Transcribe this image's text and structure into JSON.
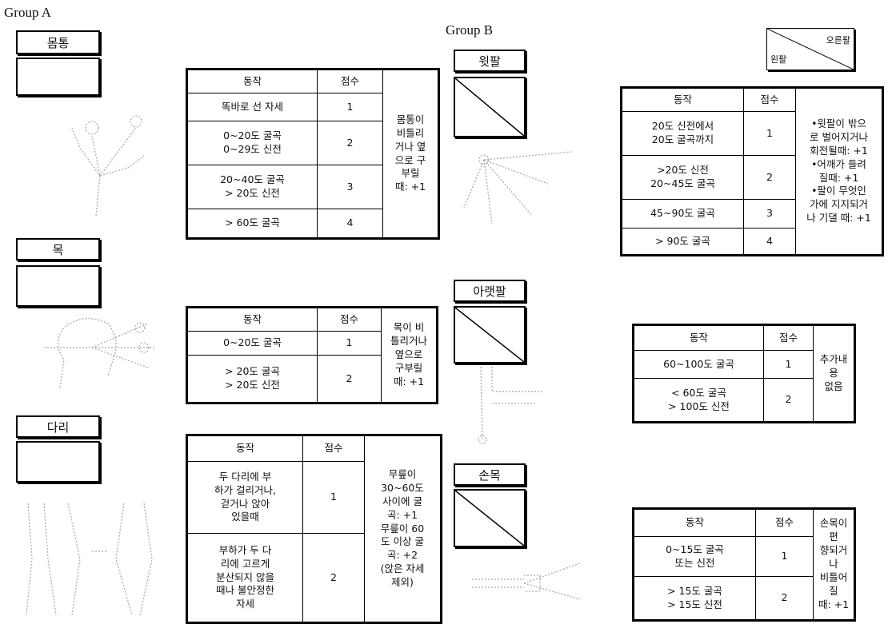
{
  "header": {
    "group_a": "Group A",
    "group_b": "Group B"
  },
  "legend": {
    "right": "오른팔",
    "left": "왼팔"
  },
  "sections": [
    {
      "label": "몸통",
      "table": {
        "headers": [
          "동작",
          "점수"
        ],
        "rows": [
          [
            "똑바로 선 자세",
            1
          ],
          [
            "0~20도 굴곡\n0~29도 신전",
            2
          ],
          [
            "20~40도 굴곡\n> 20도 신전",
            3
          ],
          [
            "> 60도 굴곡",
            4
          ]
        ],
        "note": "몸통이\n비틀리\n거나 옆\n으로 구\n부릴\n때: +1"
      }
    },
    {
      "label": "목",
      "table": {
        "headers": [
          "동작",
          "점수"
        ],
        "rows": [
          [
            "0~20도 굴곡",
            1
          ],
          [
            "> 20도 굴곡\n> 20도 신전",
            2
          ]
        ],
        "note": "목이 비\n틀리거나\n옆으로\n구부릴\n때: +1"
      }
    },
    {
      "label": "다리",
      "table": {
        "headers": [
          "동작",
          "점수"
        ],
        "rows": [
          [
            "두 다리에 부\n하가 걸리거나,\n걷거나 앉아\n있을때",
            1
          ],
          [
            "부하가 두 다\n리에 고르게\n분산되지 않을\n때나 불안정한\n자세",
            2
          ]
        ],
        "note": "무릎이\n30~60도\n사이에 굴\n곡: +1\n무릎이 60\n도 이상 굴\n곡: +2\n(앉은 자세\n제외)"
      }
    },
    {
      "label": "윗팔",
      "table": {
        "headers": [
          "동작",
          "점수"
        ],
        "rows": [
          [
            "20도 신전에서\n20도 굴곡까지",
            1
          ],
          [
            ">20도 신전\n20~45도 굴곡",
            2
          ],
          [
            "45~90도 굴곡",
            3
          ],
          [
            "> 90도 굴곡",
            4
          ]
        ],
        "note": "•윗팔이 밖으\n로 벌어지거나\n회전될때: +1\n•어깨가 들려\n질때: +1\n•팔이 무엇인\n가에 지지되거\n나 기댈 때: +1"
      }
    },
    {
      "label": "아랫팔",
      "table": {
        "headers": [
          "동작",
          "점수"
        ],
        "rows": [
          [
            "60~100도 굴곡",
            1
          ],
          [
            "< 60도 굴곡\n> 100도 신전",
            2
          ]
        ],
        "note": "추가내용\n없음"
      }
    },
    {
      "label": "손목",
      "table": {
        "headers": [
          "동작",
          "점수"
        ],
        "rows": [
          [
            "0~15도 굴곡\n또는 신전",
            1
          ],
          [
            "> 15도 굴곡\n> 15도 신전",
            2
          ]
        ],
        "note": "손목이 편\n향되거나\n비틀어질\n때: +1"
      }
    }
  ]
}
